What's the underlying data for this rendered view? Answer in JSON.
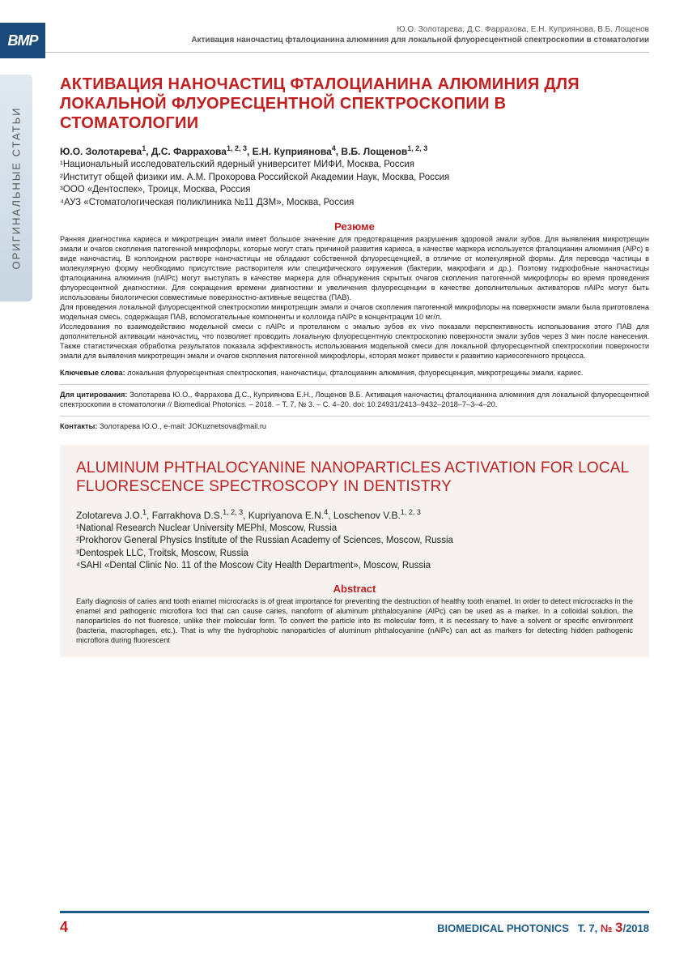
{
  "colors": {
    "accent_red": "#c02020",
    "accent_blue": "#1a5a8a",
    "logo_bg": "#1a4a7a",
    "side_tab_g1": "#e0e9f0",
    "side_tab_g2": "#c8d6e2",
    "en_bg": "#f5f2ef",
    "text": "#222222",
    "muted": "#555555"
  },
  "typography": {
    "title_size_pt": 20,
    "author_size_pt": 12,
    "affil_size_pt": 11.5,
    "body_size_pt": 9.2,
    "footer_size_pt": 13
  },
  "logo": "BMP",
  "header": {
    "authors_line": "Ю.О. Золотарева, Д.С. Фаррахова, Е.Н. Куприянова, В.Б. Лощенов",
    "running_title": "Активация наночастиц фталоцианина алюминия для локальной флуоресцентной спектроскопии в стоматологии"
  },
  "side_tab": "ОРИГИНАЛЬНЫЕ СТАТЬИ",
  "ru": {
    "title": "АКТИВАЦИЯ НАНОЧАСТИЦ ФТАЛОЦИАНИНА АЛЮМИНИЯ ДЛЯ ЛОКАЛЬНОЙ ФЛУОРЕСЦЕНТНОЙ СПЕКТРОСКОПИИ В СТОМАТОЛОГИИ",
    "authors_html": "Ю.О. Золотарева<sup>1</sup>, Д.С. Фаррахова<sup>1, 2, 3</sup>, Е.Н. Куприянова<sup>4</sup>, В.Б. Лощенов<sup>1, 2, 3</sup>",
    "affil1": "¹Национальный исследовательский ядерный университет МИФИ, Москва, Россия",
    "affil2": "²Институт общей физики им. А.М. Прохорова Российской Академии Наук, Москва, Россия",
    "affil3": "³ООО «Дентоспек», Троицк, Москва, Россия",
    "affil4": "⁴АУЗ «Стоматологическая поликлиника №11 ДЗМ», Москва, Россия",
    "resume_heading": "Резюме",
    "resume_p1": "Ранняя диагностика кариеса и микротрещин эмали имеет большое значение для предотвращения разрушения здоровой эмали зубов. Для выявления микротрещин эмали и очагов скопления патогенной микрофлоры, которые могут стать причиной развития кариеса, в качестве маркера используется фталоцианин алюминия (AlPc) в виде наночастиц. В коллоидном растворе наночастицы не обладают собственной флуоресценцией, в отличие от молекулярной формы. Для перевода частицы в молекулярную форму необходимо присутствие растворителя или специфического окружения (бактерии, макрофаги и др.). Поэтому гидрофобные наночастицы фталоцианина алюминия (nAlPc) могут выступать в качестве маркера для обнаружения скрытых очагов скопления патогенной микрофлоры во время проведения флуоресцентной диагностики. Для сокращения времени диагностики и увеличения флуоресценции в качестве дополнительных активаторов nAlPc могут быть использованы биологически совместимые поверхностно-активные вещества (ПАВ).",
    "resume_p2": "Для проведения локальной флуоресцентной спектроскопии микротрещин эмали и очагов скопления патогенной микрофлоры на поверхности эмали была приготовлена модельная смесь, содержащая ПАВ, вспомогательные компоненты и коллоида nAlPc в концентрации 10 мг/л.",
    "resume_p3": "Исследования по взаимодействию модельной смеси с nAlPc и протеланом с эмалью зубов ex vivo показали перспективность использования этого ПАВ для дополнительной активации наночастиц, что позволяет проводить локальную флуоресцентную спектроскопию поверхности эмали зубов через 3 мин после нанесения. Также статистическая обработка результатов показала эффективность использования модельной смеси для локальной флуоресцентной спектроскопии поверхности эмали для выявления микротрещин эмали и очагов скопления патогенной микрофлоры, которая может привести к развитию кариесогенного процесса.",
    "keywords_label": "Ключевые слова:",
    "keywords": " локальная флуоресцентная спектроскопия, наночастицы, фталоцианин алюминия, флуоресценция, микротрещины эмали, кариес.",
    "citation_label": "Для цитирования:",
    "citation": " Золотарева Ю.О., Фаррахова Д.С., Куприянова Е.Н., Лощенов В.Б. Активация наночастиц фталоцианина алюминия для локальной флуоресцентной спектроскопии в стоматологии // Biomedical Photonics. – 2018. – Т. 7, № 3. – С. 4–20. doi: 10.24931/2413–9432–2018–7–3–4–20.",
    "contacts_label": "Контакты:",
    "contacts": " Золотарева Ю.О., e-mail: JOKuznetsova@mail.ru"
  },
  "en": {
    "title": "ALUMINUM PHTHALOCYANINE NANOPARTICLES ACTIVATION FOR LOCAL FLUORESCENCE SPECTROSCOPY IN DENTISTRY",
    "authors_html": "Zolotareva J.O.<sup>1</sup>, Farrakhova D.S.<sup>1, 2, 3</sup>, Kupriyanova E.N.<sup>4</sup>, Loschenov V.B.<sup>1, 2, 3</sup>",
    "affil1": "¹National Research Nuclear University MEPhI, Moscow, Russia",
    "affil2": "²Prokhorov General Physics Institute of the Russian Academy of Sciences, Moscow, Russia",
    "affil3": "³Dentospek LLC, Troitsk, Moscow, Russia",
    "affil4": "⁴SAHI «Dental Clinic No. 11 of the Moscow City Health Department», Moscow, Russia",
    "abstract_heading": "Abstract",
    "abstract_p1": "Early diagnosis of caries and tooth enamel microcracks is of great importance for preventing the destruction of healthy tooth enamel. In order to detect microcracks in the enamel and pathogenic microflora foci that can cause caries, nanoform of aluminum phthalocyanine (AlPc) can be used as a marker. In a colloidal solution, the nanoparticles do not fluoresce, unlike their molecular form. To convert the particle into its molecular form, it is necessary to have a solvent or specific environment (bacteria, macrophages, etc.). That is why the hydrophobic nanoparticles of aluminum phthalocyanine (nAlPc) can act as markers for detecting hidden pathogenic microflora during fluorescent"
  },
  "footer": {
    "page": "4",
    "journal": "BIOMEDICAL PHOTONICS",
    "volume": "Т. 7, ",
    "issue_label": "№ ",
    "issue": "3",
    "year": "/2018"
  }
}
